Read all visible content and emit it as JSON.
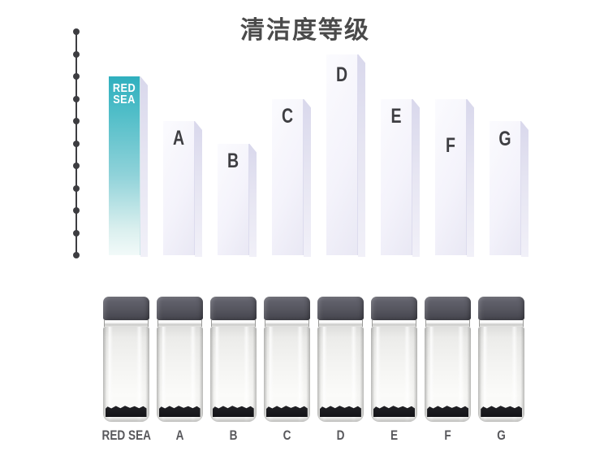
{
  "title": "清洁度等级",
  "chart_data": {
    "type": "bar",
    "title": "清洁度等级",
    "categories": [
      "RED SEA",
      "A",
      "B",
      "C",
      "D",
      "E",
      "F",
      "G"
    ],
    "values": [
      8,
      6,
      5,
      7,
      9,
      7,
      7,
      6
    ],
    "ylim": [
      0,
      10
    ],
    "xlabel": "",
    "ylabel": "",
    "y_axis": {
      "style": "dotted-line",
      "tick_dots": 11,
      "tick_labels_visible": false
    },
    "legend": "none",
    "grid": false,
    "highlight": {
      "category": "RED SEA",
      "label_lines": [
        "RED",
        "SEA"
      ],
      "color_top": "#2fafbe",
      "color_bottom": "#f2faf9"
    },
    "bar_color": "#f3f2fa",
    "bar_label_color": "#3e3e42",
    "axis_color": "#3d3d41",
    "title_color": "#4a4a4a"
  },
  "bottles": {
    "labels": [
      "RED SEA",
      "A",
      "B",
      "C",
      "D",
      "E",
      "F",
      "G"
    ],
    "label_color": "#58585c",
    "cap_color": "#56565f",
    "sediment_color": "#141418"
  }
}
